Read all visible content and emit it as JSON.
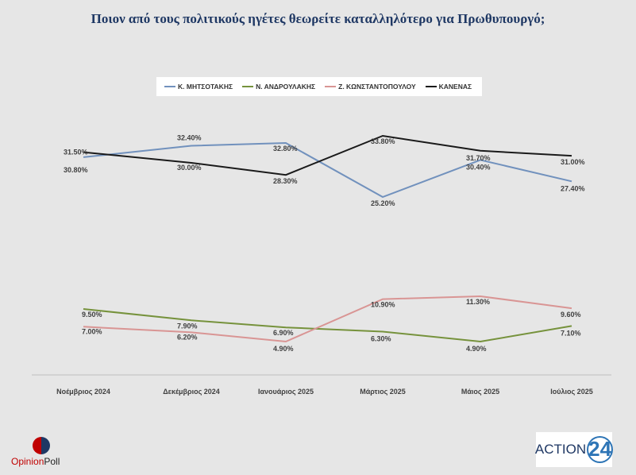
{
  "chart_data": {
    "type": "line",
    "title": "Ποιον από τους πολιτικούς ηγέτες θεωρείτε καταλληλότερο για Πρωθυπουργό;",
    "categories": [
      "Νοέμβριος 2024",
      "Δεκέμβριος  2024",
      "Ιανουάριος 2025",
      "Μάρτιος 2025",
      "Μάιος 2025",
      "Ιούλιος 2025"
    ],
    "series": [
      {
        "name": "Κ. ΜΗΤΣΟΤΑΚΗΣ",
        "color": "#7191bd",
        "values": [
          30.8,
          32.4,
          32.8,
          25.2,
          30.4,
          27.4
        ],
        "labels": [
          "30.80%",
          "32.40%",
          "32.80%",
          "25.20%",
          "30.40%",
          "27.40%"
        ]
      },
      {
        "name": "Ν. ΑΝΔΡΟΥΛΑΚΗΣ",
        "color": "#76923c",
        "values": [
          9.5,
          7.9,
          6.9,
          6.3,
          4.9,
          7.1
        ],
        "labels": [
          "9.50%",
          "7.90%",
          "6.90%",
          "6.30%",
          "4.90%",
          "7.10%"
        ]
      },
      {
        "name": "Ζ. ΚΩΝΣΤΑΝΤΟΠΟΥΛΟΥ",
        "color": "#d99594",
        "values": [
          7.0,
          6.2,
          4.9,
          10.9,
          11.3,
          9.6
        ],
        "labels": [
          "7.00%",
          "6.20%",
          "4.90%",
          "10.90%",
          "11.30%",
          "9.60%"
        ]
      },
      {
        "name": "ΚΑΝΕΝΑΣ",
        "color": "#1a1a1a",
        "values": [
          31.5,
          30.0,
          28.3,
          33.8,
          31.7,
          31.0
        ],
        "labels": [
          "31.50%",
          "30.00%",
          "28.30%",
          "33.80%",
          "31.70%",
          "31.00%"
        ]
      }
    ],
    "grid": false,
    "legend": "top"
  },
  "logos": {
    "opinion_poll": {
      "part1": "Opinion",
      "part2": "Poll"
    },
    "action24": {
      "text": "ACTION",
      "number": "24"
    }
  }
}
